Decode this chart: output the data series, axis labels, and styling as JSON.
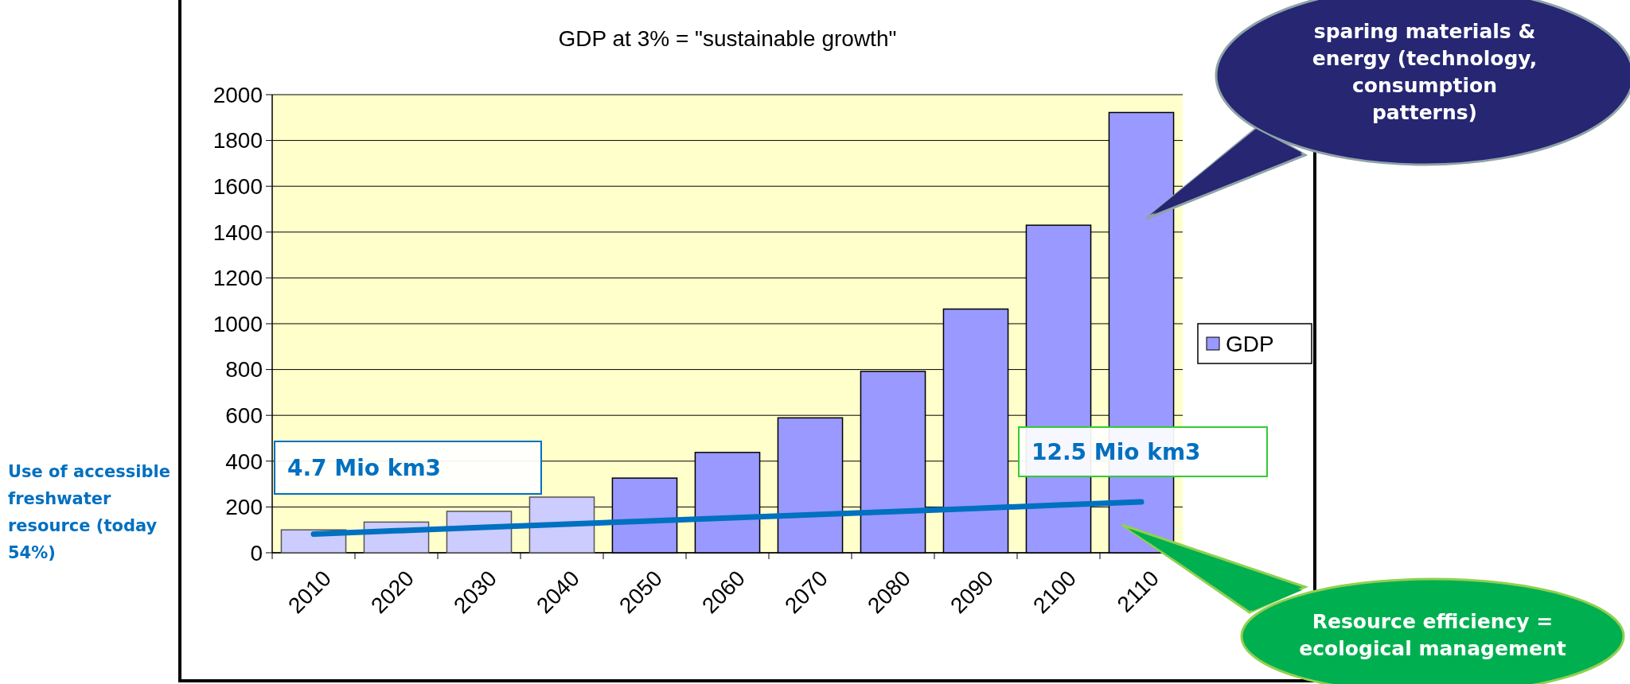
{
  "chart_data": {
    "type": "bar",
    "title": "GDP at 3% = \"sustainable growth\"",
    "categories": [
      "2010",
      "2020",
      "2030",
      "2040",
      "2050",
      "2060",
      "2070",
      "2080",
      "2090",
      "2100",
      "2110"
    ],
    "series": [
      {
        "name": "GDP",
        "color": "#9999ff",
        "colors": [
          "#ccccff",
          "#ccccff",
          "#ccccff",
          "#ccccff",
          "#9999ff",
          "#9999ff",
          "#9999ff",
          "#9999ff",
          "#9999ff",
          "#9999ff",
          "#9999ff"
        ],
        "values": [
          100,
          134,
          181,
          243,
          326,
          438,
          589,
          792,
          1064,
          1430,
          1922
        ]
      },
      {
        "name": "Use of accessible freshwater resource (today 54%)",
        "type": "line",
        "color": "#0070c0",
        "values": [
          82,
          96,
          110,
          124,
          138,
          152,
          166,
          180,
          194,
          208,
          222
        ]
      }
    ],
    "ylim": [
      0,
      2000
    ],
    "yticks": [
      0,
      200,
      400,
      600,
      800,
      1000,
      1200,
      1400,
      1600,
      1800,
      2000
    ],
    "grid": "y",
    "legend": "right",
    "annotations": [
      "4.7 Mio km3",
      "12.5 Mio km3",
      "sparing materials & energy (technology, consumption patterns)",
      "Resource efficiency = ecological management"
    ]
  }
}
